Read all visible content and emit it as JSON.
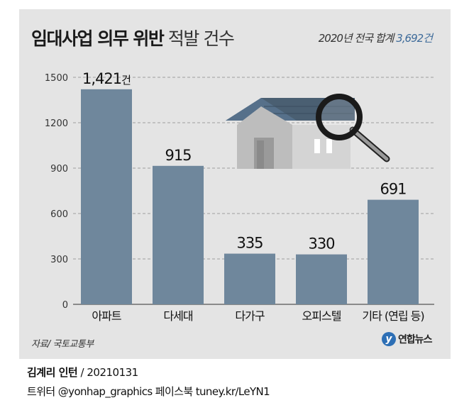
{
  "title_bold": "임대사업 의무 위반",
  "title_light": "적발 건수",
  "total": {
    "prefix": "2020년 전국 합계",
    "value": "3,692건"
  },
  "source": "자료/ 국토교통부",
  "logo": {
    "mark": "y",
    "text": "연합뉴스"
  },
  "credit": {
    "author": "김계리 인턴",
    "sep": "/",
    "date": "20210131"
  },
  "social": "트위터 @yonhap_graphics  페이스북 tuney.kr/LeYN1",
  "colors": {
    "bar": "#6f879c",
    "panel": "#e4e4e4",
    "accent": "#3e6b9a"
  },
  "illustration": "house-with-magnifier",
  "chart_data": {
    "type": "bar",
    "categories": [
      "아파트",
      "다세대",
      "다가구",
      "오피스텔",
      "기타 (연립 등)"
    ],
    "values": [
      1421,
      915,
      335,
      330,
      691
    ],
    "value_labels": [
      "1,421건",
      "915",
      "335",
      "330",
      "691"
    ],
    "yticks": [
      0,
      300,
      600,
      900,
      1200,
      1500
    ],
    "ylim": [
      0,
      1500
    ],
    "grid": true
  }
}
